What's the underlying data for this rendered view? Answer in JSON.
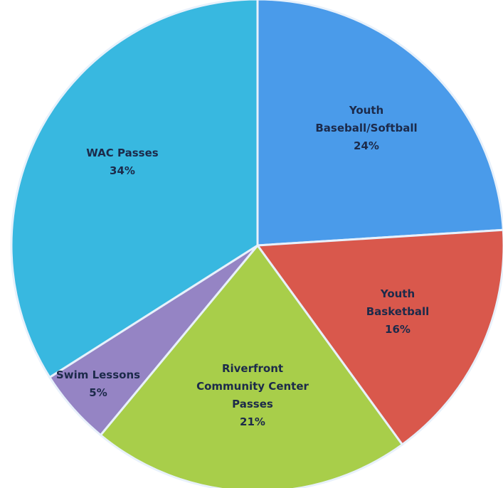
{
  "chart_data": {
    "type": "pie",
    "title": "",
    "start_angle_deg": 0,
    "direction": "clockwise",
    "slices": [
      {
        "name_lines": [
          "Youth",
          "Baseball/Softball"
        ],
        "name": "Youth Baseball/Softball",
        "value": 24,
        "label_value": "24%",
        "color": "#4a9bea"
      },
      {
        "name_lines": [
          "Youth",
          "Basketball"
        ],
        "name": "Youth Basketball",
        "value": 16,
        "label_value": "16%",
        "color": "#d9584c"
      },
      {
        "name_lines": [
          "Riverfront",
          "Community Center",
          "Passes"
        ],
        "name": "Riverfront Community Center Passes",
        "value": 21,
        "label_value": "21%",
        "color": "#a8ce4a"
      },
      {
        "name_lines": [
          "Swim Lessons"
        ],
        "name": "Swim Lessons",
        "value": 5,
        "label_value": "5%",
        "color": "#9584c4"
      },
      {
        "name_lines": [
          "WAC Passes"
        ],
        "name": "WAC Passes",
        "value": 34,
        "label_value": "34%",
        "color": "#38b8e0"
      }
    ]
  }
}
